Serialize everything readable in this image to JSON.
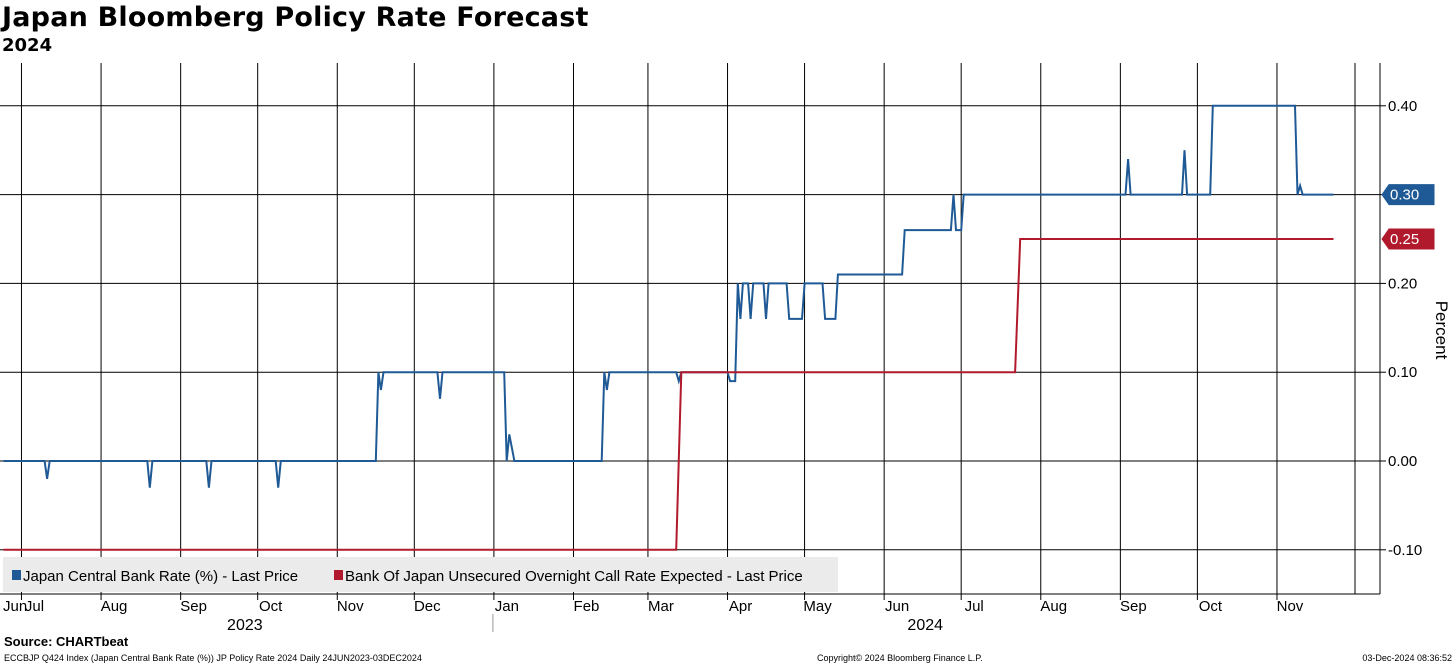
{
  "header": {
    "title": "Japan Bloomberg Policy Rate Forecast",
    "subtitle": "2024"
  },
  "footer": {
    "source": "Source: CHARTbeat",
    "left": "ECCBJP Q424 Index (Japan Central Bank Rate (%)) JP Policy Rate 2024  Daily 24JUN2023-03DEC2024",
    "center": "Copyright© 2024 Bloomberg Finance L.P.",
    "right": "03-Dec-2024 08:36:52"
  },
  "colors": {
    "blue": "#1f5a96",
    "red": "#b01a2c",
    "grid": "#000000",
    "legend_bg": "#ebebeb"
  },
  "chart_data": {
    "type": "line",
    "title": "Japan Bloomberg Policy Rate Forecast",
    "subtitle": "2024",
    "ylabel": "Percent",
    "xlabel": "",
    "ylim": [
      -0.15,
      0.45
    ],
    "yticks": [
      -0.1,
      0.0,
      0.1,
      0.2,
      0.3,
      0.4
    ],
    "ytick_labels": [
      "-0.10",
      "0.00",
      "0.10",
      "0.20",
      "0.30",
      "0.40"
    ],
    "xlim_days": [
      0,
      528
    ],
    "month_ticks": [
      {
        "label": "Jun",
        "day": 0
      },
      {
        "label": "Jul",
        "day": 7
      },
      {
        "label": "Aug",
        "day": 38
      },
      {
        "label": "Sep",
        "day": 69
      },
      {
        "label": "Oct",
        "day": 99
      },
      {
        "label": "Nov",
        "day": 130
      },
      {
        "label": "Dec",
        "day": 160
      },
      {
        "label": "Jan",
        "day": 191
      },
      {
        "label": "Feb",
        "day": 222
      },
      {
        "label": "Mar",
        "day": 251
      },
      {
        "label": "Apr",
        "day": 282
      },
      {
        "label": "May",
        "day": 312
      },
      {
        "label": "Jun",
        "day": 343
      },
      {
        "label": "Jul",
        "day": 373
      },
      {
        "label": "Aug",
        "day": 404
      },
      {
        "label": "Sep",
        "day": 435
      },
      {
        "label": "Oct",
        "day": 465
      },
      {
        "label": "Nov",
        "day": 496
      }
    ],
    "years": [
      {
        "label": "2023",
        "day": 94
      },
      {
        "label": "2024",
        "day": 359
      }
    ],
    "year_divider_day": 191,
    "grid": true,
    "legend": "bottom-left",
    "series": [
      {
        "name": "Japan Central Bank Rate (%) - Last Price",
        "color": "#1f5a96",
        "last_value": 0.3,
        "last_label": "0.30",
        "points": [
          [
            0,
            0.0
          ],
          [
            16,
            0.0
          ],
          [
            17,
            -0.02
          ],
          [
            18,
            0.0
          ],
          [
            56,
            0.0
          ],
          [
            57,
            -0.03
          ],
          [
            58,
            0.0
          ],
          [
            79,
            0.0
          ],
          [
            80,
            -0.03
          ],
          [
            81,
            0.0
          ],
          [
            106,
            0.0
          ],
          [
            107,
            -0.03
          ],
          [
            108,
            0.0
          ],
          [
            145,
            0.0
          ],
          [
            146,
            0.1
          ],
          [
            147,
            0.08
          ],
          [
            148,
            0.1
          ],
          [
            169,
            0.1
          ],
          [
            170,
            0.07
          ],
          [
            171,
            0.1
          ],
          [
            195,
            0.1
          ],
          [
            196,
            0.0
          ],
          [
            197,
            0.03
          ],
          [
            199,
            0.0
          ],
          [
            233,
            0.0
          ],
          [
            234,
            0.1
          ],
          [
            235,
            0.08
          ],
          [
            236,
            0.1
          ],
          [
            262,
            0.1
          ],
          [
            263,
            0.09
          ],
          [
            264,
            0.1
          ],
          [
            282,
            0.1
          ],
          [
            283,
            0.09
          ],
          [
            285,
            0.09
          ],
          [
            286,
            0.2
          ],
          [
            287,
            0.16
          ],
          [
            288,
            0.2
          ],
          [
            290,
            0.2
          ],
          [
            291,
            0.16
          ],
          [
            292,
            0.2
          ],
          [
            296,
            0.2
          ],
          [
            297,
            0.16
          ],
          [
            298,
            0.2
          ],
          [
            305,
            0.2
          ],
          [
            306,
            0.16
          ],
          [
            311,
            0.16
          ],
          [
            312,
            0.2
          ],
          [
            319,
            0.2
          ],
          [
            320,
            0.16
          ],
          [
            324,
            0.16
          ],
          [
            325,
            0.21
          ],
          [
            350,
            0.21
          ],
          [
            351,
            0.26
          ],
          [
            369,
            0.26
          ],
          [
            370,
            0.3
          ],
          [
            371,
            0.26
          ],
          [
            373,
            0.26
          ],
          [
            374,
            0.3
          ],
          [
            437,
            0.3
          ],
          [
            438,
            0.34
          ],
          [
            439,
            0.3
          ],
          [
            459,
            0.3
          ],
          [
            460,
            0.35
          ],
          [
            461,
            0.3
          ],
          [
            470,
            0.3
          ],
          [
            471,
            0.4
          ],
          [
            503,
            0.4
          ],
          [
            504,
            0.3
          ],
          [
            505,
            0.31
          ],
          [
            506,
            0.3
          ],
          [
            518,
            0.3
          ]
        ]
      },
      {
        "name": "Bank Of Japan Unsecured Overnight Call Rate Expected - Last Price",
        "color": "#b01a2c",
        "last_value": 0.25,
        "last_label": "0.25",
        "points": [
          [
            0,
            -0.1
          ],
          [
            262,
            -0.1
          ],
          [
            264,
            0.1
          ],
          [
            394,
            0.1
          ],
          [
            396,
            0.25
          ],
          [
            518,
            0.25
          ]
        ]
      }
    ]
  }
}
